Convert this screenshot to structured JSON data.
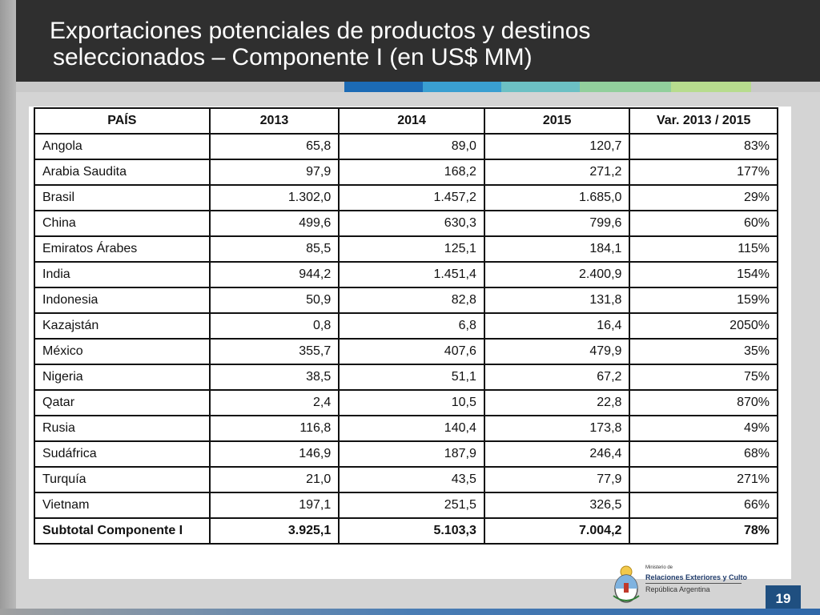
{
  "slide": {
    "title_line1": "Exportaciones potenciales de productos y destinos",
    "title_line2": "seleccionados – Componente I (en US$ MM)",
    "page_number": "19",
    "accent_colors": [
      "#1c6bb5",
      "#3a9fd1",
      "#6cc0c4",
      "#92cf9c",
      "#b7dc8e"
    ]
  },
  "table": {
    "headers": [
      "PAÍS",
      "2013",
      "2014",
      "2015",
      "Var. 2013 / 2015"
    ],
    "rows": [
      [
        "Angola",
        "65,8",
        "89,0",
        "120,7",
        "83%"
      ],
      [
        "Arabia Saudita",
        "97,9",
        "168,2",
        "271,2",
        "177%"
      ],
      [
        "Brasil",
        "1.302,0",
        "1.457,2",
        "1.685,0",
        "29%"
      ],
      [
        "China",
        "499,6",
        "630,3",
        "799,6",
        "60%"
      ],
      [
        "Emiratos Árabes",
        "85,5",
        "125,1",
        "184,1",
        "115%"
      ],
      [
        "India",
        "944,2",
        "1.451,4",
        "2.400,9",
        "154%"
      ],
      [
        "Indonesia",
        "50,9",
        "82,8",
        "131,8",
        "159%"
      ],
      [
        "Kazajstán",
        "0,8",
        "6,8",
        "16,4",
        "2050%"
      ],
      [
        "México",
        "355,7",
        "407,6",
        "479,9",
        "35%"
      ],
      [
        "Nigeria",
        "38,5",
        "51,1",
        "67,2",
        "75%"
      ],
      [
        "Qatar",
        "2,4",
        "10,5",
        "22,8",
        "870%"
      ],
      [
        "Rusia",
        "116,8",
        "140,4",
        "173,8",
        "49%"
      ],
      [
        "Sudáfrica",
        "146,9",
        "187,9",
        "246,4",
        "68%"
      ],
      [
        "Turquía",
        "21,0",
        "43,5",
        "77,9",
        "271%"
      ],
      [
        "Vietnam",
        "197,1",
        "251,5",
        "326,5",
        "66%"
      ]
    ],
    "subtotal": [
      "Subtotal Componente I",
      "3.925,1",
      "5.103,3",
      "7.004,2",
      "78%"
    ]
  },
  "logo": {
    "small_text": "Ministerio de",
    "line1": "Relaciones Exteriores y Culto",
    "line2": "República Argentina"
  }
}
